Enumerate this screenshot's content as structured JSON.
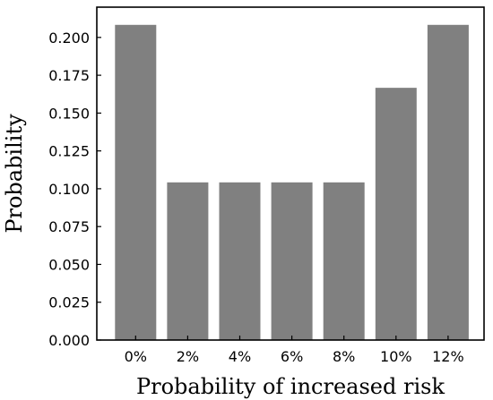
{
  "chart_data": {
    "type": "bar",
    "categories": [
      "0%",
      "2%",
      "4%",
      "6%",
      "8%",
      "10%",
      "12%"
    ],
    "values": [
      0.2083,
      0.1042,
      0.1042,
      0.1042,
      0.1042,
      0.1667,
      0.2083
    ],
    "xlabel": "Probability of increased risk",
    "ylabel": "Probability",
    "ylim": [
      0,
      0.22
    ],
    "yticks": [
      "0.000",
      "0.025",
      "0.050",
      "0.075",
      "0.100",
      "0.125",
      "0.150",
      "0.175",
      "0.200"
    ],
    "grid": false,
    "bar_color": "#808080"
  }
}
